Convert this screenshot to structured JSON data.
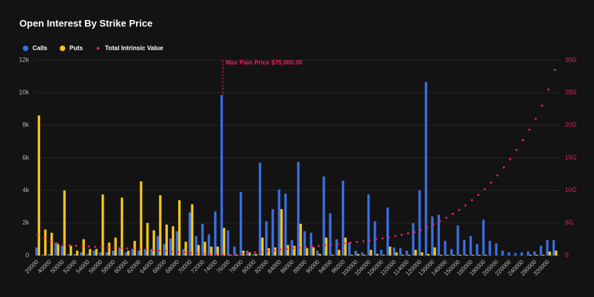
{
  "chart_data": {
    "type": "bar",
    "title": "Open Interest By Strike Price",
    "annotation": {
      "text": "Max Pain Price $75,000.00",
      "index": 29
    },
    "categories": [
      "20000",
      null,
      "40000",
      null,
      "50000",
      null,
      "52000",
      null,
      "54000",
      null,
      "56000",
      null,
      "58000",
      null,
      "60000",
      null,
      "62000",
      null,
      "64000",
      null,
      "66000",
      null,
      "68000",
      null,
      "70000",
      null,
      "72000",
      null,
      "74000",
      null,
      "76000",
      null,
      "78000",
      null,
      "80000",
      null,
      "82000",
      null,
      "84000",
      null,
      "86000",
      null,
      "88000",
      null,
      "90000",
      null,
      "94000",
      null,
      "96000",
      null,
      "100000",
      null,
      "104000",
      null,
      "106000",
      null,
      "110000",
      null,
      "114000",
      null,
      "120000",
      null,
      "130000",
      null,
      "140000",
      null,
      "150000",
      null,
      "160000",
      null,
      "180000",
      null,
      "200000",
      null,
      "220000",
      null,
      "240000",
      null,
      "280000",
      null,
      "320000",
      null
    ],
    "series": [
      {
        "name": "Calls",
        "color": "#3b6fe0",
        "values": [
          500,
          50,
          100,
          800,
          600,
          100,
          100,
          200,
          100,
          300,
          200,
          200,
          300,
          500,
          200,
          400,
          300,
          400,
          400,
          1200,
          700,
          1050,
          1500,
          400,
          2650,
          1200,
          1950,
          1300,
          2700,
          9850,
          1550,
          550,
          3900,
          300,
          100,
          5700,
          2100,
          2850,
          4050,
          3800,
          950,
          5750,
          1500,
          1400,
          300,
          4850,
          2600,
          1000,
          4600,
          800,
          300,
          200,
          3750,
          2100,
          350,
          2950,
          500,
          450,
          300,
          2000,
          4000,
          10650,
          2400,
          2500,
          900,
          400,
          1850,
          950,
          1200,
          700,
          2200,
          900,
          750,
          300,
          200,
          150,
          200,
          250,
          250,
          600,
          950,
          950
        ]
      },
      {
        "name": "Puts",
        "color": "#f5c518",
        "values": [
          8600,
          1600,
          1400,
          700,
          4000,
          600,
          300,
          1000,
          400,
          400,
          3750,
          800,
          1100,
          3550,
          300,
          900,
          4550,
          2000,
          1550,
          3700,
          1900,
          1800,
          3400,
          850,
          3150,
          650,
          850,
          550,
          550,
          1700,
          50,
          50,
          300,
          200,
          100,
          1100,
          450,
          500,
          2850,
          650,
          600,
          1950,
          450,
          500,
          100,
          1100,
          50,
          350,
          1100,
          50,
          100,
          50,
          350,
          100,
          50,
          550,
          200,
          50,
          50,
          350,
          200,
          100,
          500,
          50,
          50,
          50,
          50,
          50,
          50,
          50,
          50,
          0,
          0,
          0,
          0,
          0,
          0,
          50,
          50,
          50,
          250,
          300
        ]
      },
      {
        "name": "Total Intrinsic Value",
        "color": "#e8245e",
        "axis": "y2",
        "values": [
          3200000000,
          2700000000,
          2200000000,
          1900000000,
          1700000000,
          1600000000,
          1500000000,
          1450000000,
          1400000000,
          1350000000,
          1300000000,
          1250000000,
          1200000000,
          1150000000,
          1100000000,
          1000000000,
          950000000,
          900000000,
          850000000,
          800000000,
          700000000,
          600000000,
          550000000,
          500000000,
          400000000,
          350000000,
          300000000,
          200000000,
          150000000,
          100000000,
          100000000,
          200000000,
          300000000,
          400000000,
          500000000,
          600000000,
          700000000,
          800000000,
          900000000,
          1000000000,
          1100000000,
          1200000000,
          1300000000,
          1400000000,
          1500000000,
          1600000000,
          1700000000,
          1800000000,
          1900000000,
          2000000000,
          2100000000,
          2200000000,
          2350000000,
          2500000000,
          2650000000,
          2800000000,
          3000000000,
          3200000000,
          3400000000,
          3600000000,
          3900000000,
          4300000000,
          4800000000,
          5300000000,
          5800000000,
          6400000000,
          7000000000,
          7700000000,
          8500000000,
          9300000000,
          10200000000,
          11200000000,
          12300000000,
          13500000000,
          14800000000,
          16200000000,
          17700000000,
          19300000000,
          21000000000,
          23000000000,
          25500000000,
          28500000000
        ]
      }
    ],
    "ylim": [
      0,
      12000
    ],
    "yticks": [
      0,
      {
        "value": 2000,
        "label": "2k"
      },
      {
        "value": 4000,
        "label": "4k"
      },
      {
        "value": 6000,
        "label": "6k"
      },
      {
        "value": 8000,
        "label": "8k"
      },
      {
        "value": 10000,
        "label": "10k"
      },
      {
        "value": 12000,
        "label": "12k"
      }
    ],
    "y2lim": [
      0,
      30000000000
    ],
    "y2ticks": [
      0,
      {
        "value": 5000000000,
        "label": "5G"
      },
      {
        "value": 10000000000,
        "label": "10G"
      },
      {
        "value": 15000000000,
        "label": "15G"
      },
      {
        "value": 20000000000,
        "label": "20G"
      },
      {
        "value": 25000000000,
        "label": "25G"
      },
      {
        "value": 30000000000,
        "label": "30G"
      }
    ],
    "grid": true,
    "legend": "top-left"
  }
}
